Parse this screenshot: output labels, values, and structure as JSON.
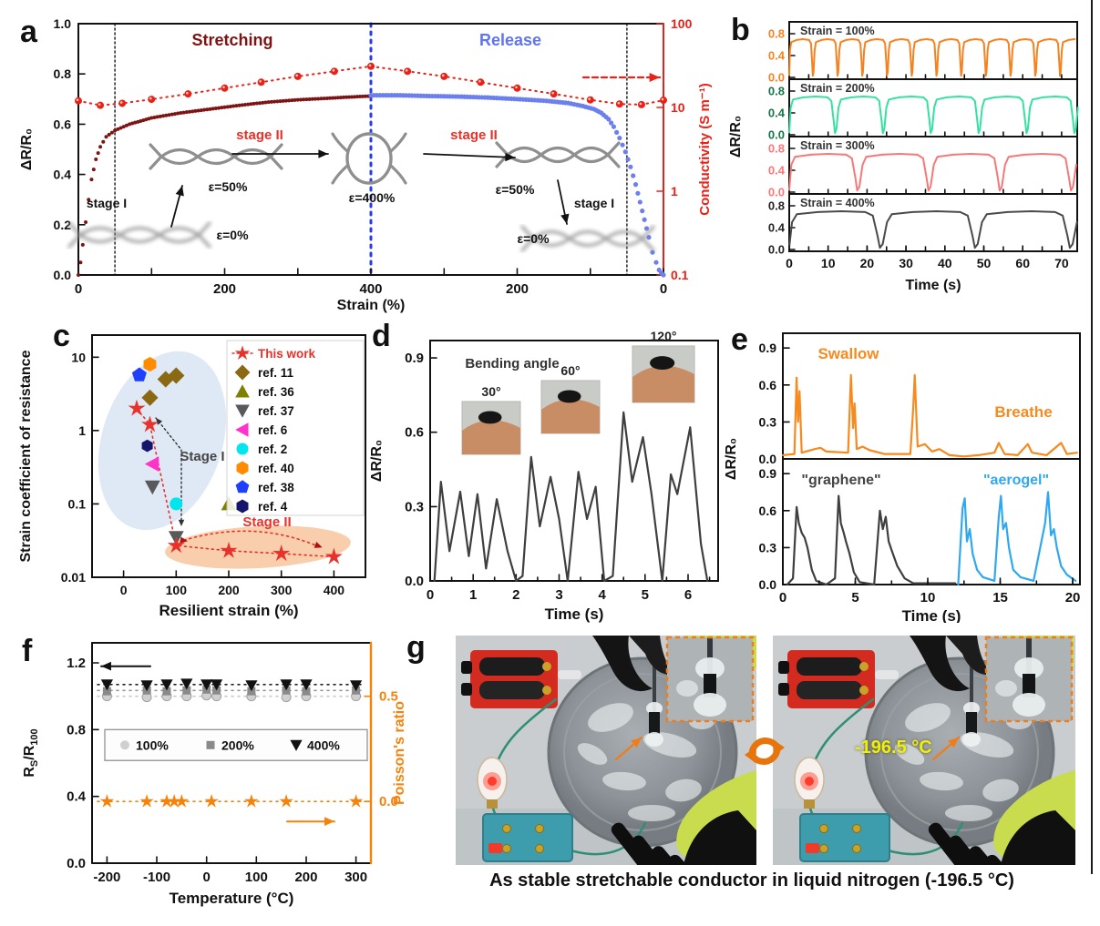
{
  "figure": {
    "panels": {
      "a": "a",
      "b": "b",
      "c": "c",
      "d": "d",
      "e": "e",
      "f": "f",
      "g": "g"
    },
    "caption_g": "As stable stretchable conductor in liquid nitrogen (-196.5 °C)",
    "temp_label": "-196.5 °C"
  },
  "chart_data": [
    {
      "panel": "a",
      "type": "line",
      "xlabel": "Strain (%)",
      "x_tick_labels": [
        "0",
        "200",
        "400",
        "200",
        "0"
      ],
      "ylabel_left": "ΔR/R₀",
      "yticks_left": [
        "0.0",
        "0.2",
        "0.4",
        "0.6",
        "0.8",
        "1.0"
      ],
      "ylabel_right": "Conductivity (S m⁻¹)",
      "yticks_right": [
        "100",
        "10",
        "1",
        "0.1"
      ],
      "labels": {
        "stretching": "Stretching",
        "release": "Release",
        "stage1": "stage I",
        "stage2": "stage II",
        "e0": "ε=0%",
        "e50": "ε=50%",
        "e400": "ε=400%"
      },
      "colors": {
        "stretch": "#7d1313",
        "release": "#6b7fef",
        "conductivity": "#e82218",
        "divider": "#2a3be8"
      },
      "series": {
        "stretching": [
          [
            0,
            0.0
          ],
          [
            3,
            0.05
          ],
          [
            6,
            0.12
          ],
          [
            10,
            0.21
          ],
          [
            14,
            0.3
          ],
          [
            18,
            0.38
          ],
          [
            24,
            0.46
          ],
          [
            30,
            0.51
          ],
          [
            38,
            0.55
          ],
          [
            50,
            0.575
          ],
          [
            70,
            0.6
          ],
          [
            100,
            0.625
          ],
          [
            140,
            0.645
          ],
          [
            180,
            0.66
          ],
          [
            220,
            0.675
          ],
          [
            260,
            0.688
          ],
          [
            300,
            0.697
          ],
          [
            340,
            0.703
          ],
          [
            370,
            0.708
          ],
          [
            400,
            0.712
          ]
        ],
        "release": [
          [
            400,
            0.715
          ],
          [
            360,
            0.715
          ],
          [
            320,
            0.712
          ],
          [
            280,
            0.71
          ],
          [
            240,
            0.706
          ],
          [
            200,
            0.7
          ],
          [
            160,
            0.693
          ],
          [
            130,
            0.684
          ],
          [
            110,
            0.672
          ],
          [
            95,
            0.66
          ],
          [
            85,
            0.645
          ],
          [
            75,
            0.62
          ],
          [
            68,
            0.59
          ],
          [
            60,
            0.545
          ],
          [
            52,
            0.49
          ],
          [
            45,
            0.43
          ],
          [
            38,
            0.36
          ],
          [
            32,
            0.29
          ],
          [
            26,
            0.22
          ],
          [
            20,
            0.15
          ],
          [
            15,
            0.09
          ],
          [
            10,
            0.05
          ],
          [
            6,
            0.02
          ],
          [
            3,
            0.008
          ],
          [
            0,
            0.0
          ]
        ],
        "conductivity_t": [
          [
            0,
            12
          ],
          [
            30,
            10.6
          ],
          [
            60,
            11.2
          ],
          [
            100,
            12.5
          ],
          [
            150,
            14.5
          ],
          [
            200,
            17
          ],
          [
            250,
            20
          ],
          [
            300,
            23.5
          ],
          [
            350,
            27
          ],
          [
            400,
            31
          ],
          [
            450,
            27
          ],
          [
            500,
            23.5
          ],
          [
            550,
            20
          ],
          [
            600,
            17
          ],
          [
            650,
            14.5
          ],
          [
            700,
            12.3
          ],
          [
            740,
            11
          ],
          [
            770,
            10.8
          ],
          [
            800,
            12.2
          ]
        ]
      }
    },
    {
      "panel": "b",
      "type": "line",
      "xlabel": "Time (s)",
      "x_tick_labels": [
        "0",
        "10",
        "20",
        "30",
        "40",
        "50",
        "60",
        "70"
      ],
      "ylabel": "ΔR/R₀",
      "yticks": [
        "0.0",
        "0.4",
        "0.8"
      ],
      "tmax": 74,
      "peak": 0.7,
      "rows": [
        {
          "label": "Strain = 100%",
          "period": 6.35,
          "color": "#f5821f",
          "tick_color": "#f5821f"
        },
        {
          "label": "Strain = 200%",
          "period": 12.3,
          "color": "#35e0a1",
          "tick_color": "#17744a"
        },
        {
          "label": "Strain = 300%",
          "period": 18.3,
          "color": "#f87878",
          "tick_color": "#f87878"
        },
        {
          "label": "Strain = 400%",
          "period": 24.4,
          "color": "#4a4a4a",
          "tick_color": "#222222"
        }
      ]
    },
    {
      "panel": "c",
      "type": "scatter",
      "xlabel": "Resilient strain (%)",
      "x_tick_labels": [
        "0",
        "100",
        "200",
        "300",
        "400"
      ],
      "ylabel": "Strain coefficient of resistance",
      "y_tick_labels": [
        "10",
        "1",
        "0.1",
        "0.01"
      ],
      "stage1_label": "Stage I",
      "stage2_label": "Stage II",
      "legend": [
        {
          "label": "This work",
          "marker": "star",
          "color": "#e8312a"
        },
        {
          "label": "ref. 11",
          "marker": "diamond",
          "color": "#8b6914"
        },
        {
          "label": "ref. 36",
          "marker": "triup",
          "color": "#808000"
        },
        {
          "label": "ref. 37",
          "marker": "tridown",
          "color": "#595959"
        },
        {
          "label": "ref. 6",
          "marker": "trileft",
          "color": "#ff33cc"
        },
        {
          "label": "ref. 2",
          "marker": "circle",
          "color": "#00e5ee"
        },
        {
          "label": "ref. 40",
          "marker": "hex",
          "color": "#ff8c00"
        },
        {
          "label": "ref. 38",
          "marker": "pent",
          "color": "#1f3fff"
        },
        {
          "label": "ref. 4",
          "marker": "hex",
          "color": "#15156b"
        }
      ],
      "points": {
        "this_work": [
          [
            25,
            2.0
          ],
          [
            50,
            1.2
          ],
          [
            100,
            0.027
          ],
          [
            200,
            0.023
          ],
          [
            300,
            0.021
          ],
          [
            400,
            0.019
          ]
        ],
        "ref11": [
          [
            50,
            2.8
          ],
          [
            80,
            5.0
          ],
          [
            100,
            5.6
          ]
        ],
        "ref36": [
          [
            200,
            0.1
          ]
        ],
        "ref37": [
          [
            55,
            0.17
          ],
          [
            100,
            0.035
          ]
        ],
        "ref6": [
          [
            55,
            0.35
          ]
        ],
        "ref2": [
          [
            100,
            0.1
          ]
        ],
        "ref40": [
          [
            50,
            8.0
          ]
        ],
        "ref38": [
          [
            30,
            5.7
          ]
        ],
        "ref4": [
          [
            45,
            0.62
          ]
        ]
      }
    },
    {
      "panel": "d",
      "type": "line",
      "xlabel": "Time (s)",
      "x_tick_labels": [
        "0",
        "1",
        "2",
        "3",
        "4",
        "5",
        "6"
      ],
      "ylabel": "ΔR/R₀",
      "y_tick_labels": [
        "0.0",
        "0.3",
        "0.6",
        "0.9"
      ],
      "note": "Bending angle",
      "inset_labels": [
        "30°",
        "60°",
        "120°"
      ],
      "color": "#3f3f3f",
      "trace": [
        [
          0.1,
          0
        ],
        [
          0.25,
          0.4
        ],
        [
          0.45,
          0.12
        ],
        [
          0.7,
          0.36
        ],
        [
          0.9,
          0.1
        ],
        [
          1.1,
          0.35
        ],
        [
          1.3,
          0.05
        ],
        [
          1.55,
          0.33
        ],
        [
          1.8,
          0.12
        ],
        [
          2.0,
          0.0
        ],
        [
          2.15,
          0.02
        ],
        [
          2.35,
          0.5
        ],
        [
          2.55,
          0.22
        ],
        [
          2.8,
          0.42
        ],
        [
          3.0,
          0.25
        ],
        [
          3.2,
          0.0
        ],
        [
          3.45,
          0.44
        ],
        [
          3.65,
          0.25
        ],
        [
          3.85,
          0.38
        ],
        [
          4.05,
          0.0
        ],
        [
          4.25,
          0.02
        ],
        [
          4.5,
          0.68
        ],
        [
          4.7,
          0.4
        ],
        [
          4.95,
          0.58
        ],
        [
          5.15,
          0.35
        ],
        [
          5.4,
          0.0
        ],
        [
          5.6,
          0.43
        ],
        [
          5.75,
          0.35
        ],
        [
          6.05,
          0.62
        ],
        [
          6.3,
          0.15
        ],
        [
          6.45,
          0.0
        ]
      ]
    },
    {
      "panel": "e",
      "type": "line",
      "xlabel": "Time (s)",
      "x_tick_labels": [
        "0",
        "5",
        "10",
        "15",
        "20"
      ],
      "ylabel": "ΔR/R₀",
      "y_tick_labels": [
        "0.9",
        "0.6",
        "0.3",
        "0.0"
      ],
      "labels": {
        "swallow": "Swallow",
        "breathe": "Breathe",
        "graphene": "\"graphene\"",
        "aerogel": "\"aerogel\""
      },
      "colors": {
        "swallow": "#f78a1e",
        "graphene": "#3f3f3f",
        "aerogel": "#2fa8f0"
      },
      "series": {
        "swallow": [
          [
            0,
            0.03
          ],
          [
            0.8,
            0.04
          ],
          [
            0.95,
            0.66
          ],
          [
            1.05,
            0.3
          ],
          [
            1.15,
            0.55
          ],
          [
            1.3,
            0.05
          ],
          [
            2.2,
            0.08
          ],
          [
            2.6,
            0.09
          ],
          [
            3,
            0.06
          ],
          [
            4.5,
            0.05
          ],
          [
            4.7,
            0.68
          ],
          [
            4.85,
            0.25
          ],
          [
            4.95,
            0.45
          ],
          [
            5.1,
            0.08
          ],
          [
            5.5,
            0.1
          ],
          [
            6,
            0.07
          ],
          [
            7,
            0.04
          ],
          [
            8.8,
            0.04
          ],
          [
            9.0,
            0.42
          ],
          [
            9.1,
            0.68
          ],
          [
            9.3,
            0.1
          ],
          [
            9.8,
            0.12
          ],
          [
            10.3,
            0.06
          ],
          [
            10.8,
            0.08
          ],
          [
            11.5,
            0.03
          ],
          [
            12.5,
            0.02
          ],
          [
            13.5,
            0.03
          ],
          [
            14.6,
            0.05
          ],
          [
            14.9,
            0.13
          ],
          [
            15.3,
            0.04
          ],
          [
            16.2,
            0.03
          ],
          [
            16.9,
            0.12
          ],
          [
            17.2,
            0.05
          ],
          [
            18.2,
            0.03
          ],
          [
            19.2,
            0.13
          ],
          [
            19.6,
            0.04
          ],
          [
            20.3,
            0.05
          ]
        ],
        "graphene": [
          [
            0.3,
            0.0
          ],
          [
            0.7,
            0.05
          ],
          [
            0.95,
            0.63
          ],
          [
            1.1,
            0.5
          ],
          [
            1.3,
            0.42
          ],
          [
            1.5,
            0.38
          ],
          [
            1.7,
            0.3
          ],
          [
            2.0,
            0.12
          ],
          [
            2.3,
            0.03
          ],
          [
            3.0,
            0.0
          ],
          [
            3.6,
            0.05
          ],
          [
            3.85,
            0.72
          ],
          [
            4.0,
            0.5
          ],
          [
            4.2,
            0.42
          ],
          [
            4.35,
            0.35
          ],
          [
            4.6,
            0.25
          ],
          [
            4.9,
            0.1
          ],
          [
            5.3,
            0.02
          ],
          [
            6.3,
            0.0
          ],
          [
            6.7,
            0.6
          ],
          [
            6.9,
            0.45
          ],
          [
            7.1,
            0.55
          ],
          [
            7.3,
            0.35
          ],
          [
            7.5,
            0.28
          ],
          [
            7.9,
            0.15
          ],
          [
            8.4,
            0.05
          ],
          [
            9.0,
            0.01
          ],
          [
            11.9,
            0.01
          ]
        ],
        "aerogel": [
          [
            12.1,
            0.0
          ],
          [
            12.4,
            0.62
          ],
          [
            12.55,
            0.7
          ],
          [
            12.7,
            0.35
          ],
          [
            12.9,
            0.45
          ],
          [
            13.1,
            0.25
          ],
          [
            13.4,
            0.12
          ],
          [
            13.8,
            0.06
          ],
          [
            14.6,
            0.03
          ],
          [
            14.9,
            0.55
          ],
          [
            15.05,
            0.72
          ],
          [
            15.2,
            0.45
          ],
          [
            15.4,
            0.5
          ],
          [
            15.6,
            0.3
          ],
          [
            15.9,
            0.12
          ],
          [
            16.4,
            0.06
          ],
          [
            17.3,
            0.03
          ],
          [
            18.1,
            0.5
          ],
          [
            18.3,
            0.75
          ],
          [
            18.5,
            0.4
          ],
          [
            18.7,
            0.45
          ],
          [
            18.9,
            0.3
          ],
          [
            19.2,
            0.15
          ],
          [
            19.6,
            0.08
          ],
          [
            20.2,
            0.03
          ]
        ]
      }
    },
    {
      "panel": "f",
      "type": "scatter",
      "xlabel": "Temperature (°C)",
      "x_tick_labels": [
        "-200",
        "-100",
        "0",
        "100",
        "200",
        "300"
      ],
      "ylabel_left_parts": [
        "R",
        "S",
        "/R",
        "100"
      ],
      "ylabel_right": "Poisson's ratio",
      "yticks_left": [
        "0.0",
        "0.4",
        "0.8",
        "1.2"
      ],
      "yticks_right": [
        "0.5",
        "0.0"
      ],
      "legend": [
        "100%",
        "200%",
        "400%"
      ],
      "accent": "#f5820a",
      "temps": [
        -200,
        -120,
        -80,
        -40,
        0,
        20,
        90,
        160,
        200,
        300
      ],
      "r100": [
        1.0,
        0.995,
        1.0,
        1.0,
        1.005,
        1.0,
        1.0,
        0.995,
        1.0,
        1.0
      ],
      "r200": [
        1.03,
        1.035,
        1.03,
        1.035,
        1.04,
        1.035,
        1.03,
        1.035,
        1.03,
        1.035
      ],
      "r400": [
        1.07,
        1.065,
        1.07,
        1.075,
        1.07,
        1.07,
        1.065,
        1.07,
        1.07,
        1.065
      ],
      "star_temps": [
        -200,
        -120,
        -80,
        -65,
        -50,
        10,
        90,
        160,
        300
      ],
      "poisson_value": 0.0
    }
  ]
}
